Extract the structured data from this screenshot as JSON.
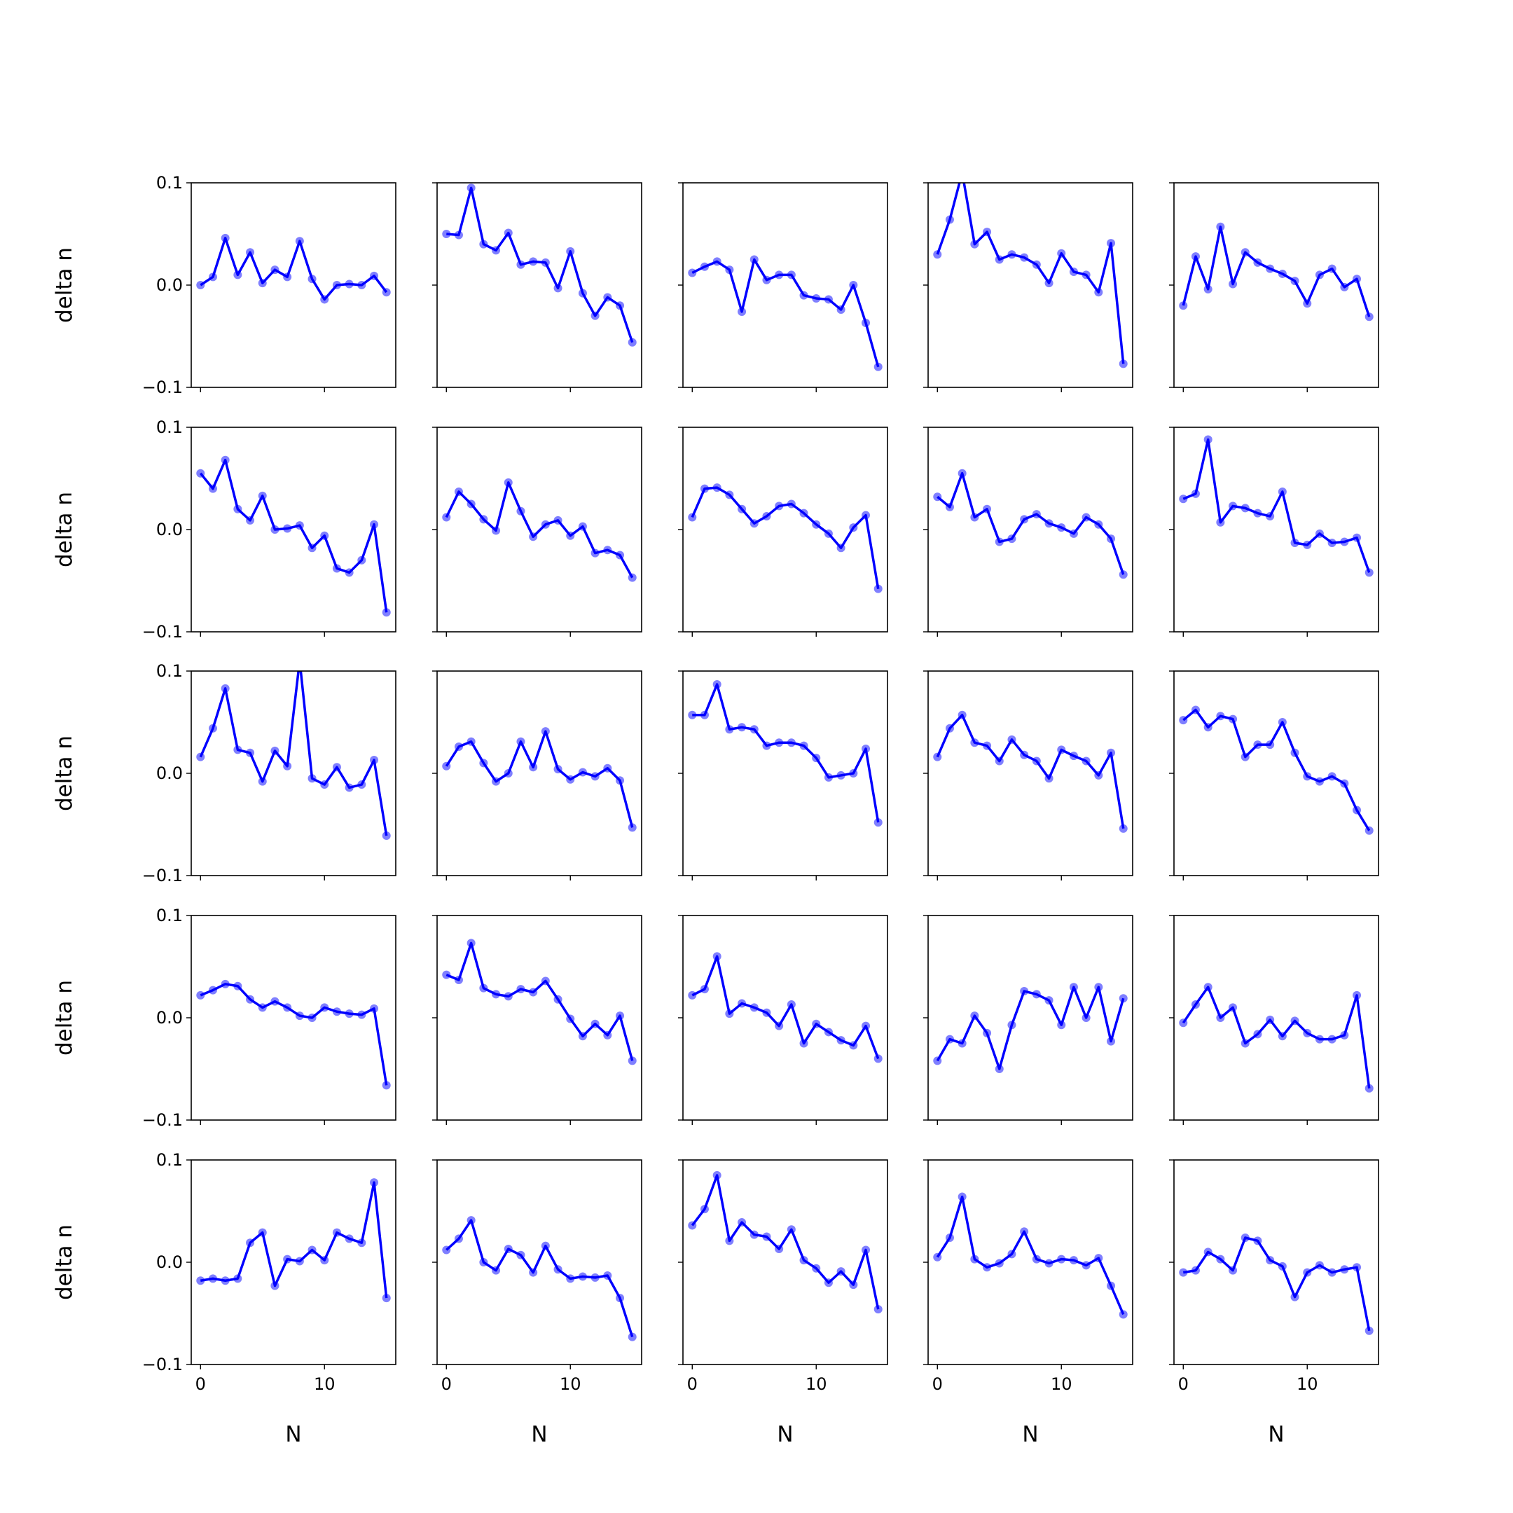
{
  "chart_data": [
    {
      "type": "line",
      "ylabel": "delta n",
      "x": [
        0,
        1,
        2,
        3,
        4,
        5,
        6,
        7,
        8,
        9,
        10,
        11,
        12,
        13,
        14,
        15
      ],
      "values": [
        0.0,
        0.008,
        0.046,
        0.01,
        0.032,
        0.002,
        0.015,
        0.008,
        0.043,
        0.006,
        -0.014,
        0.0,
        0.001,
        0.0,
        0.009,
        -0.007
      ],
      "color": "#0000ff",
      "xlim": [
        -0.75,
        15.75
      ],
      "ylim": [
        -0.1,
        0.1
      ],
      "xticks": [
        0,
        10
      ],
      "yticks": [
        {
          "value": -0.1,
          "label": "−0.1"
        },
        {
          "value": 0,
          "label": "0.0"
        },
        {
          "value": 0.1,
          "label": "0.1"
        }
      ]
    },
    {
      "type": "line",
      "x": [
        0,
        1,
        2,
        3,
        4,
        5,
        6,
        7,
        8,
        9,
        10,
        11,
        12,
        13,
        14,
        15
      ],
      "values": [
        0.05,
        0.049,
        0.095,
        0.04,
        0.034,
        0.051,
        0.02,
        0.023,
        0.022,
        -0.003,
        0.033,
        -0.008,
        -0.03,
        -0.012,
        -0.02,
        -0.056
      ],
      "color": "#0000ff",
      "xlim": [
        -0.75,
        15.75
      ],
      "ylim": [
        -0.1,
        0.1
      ],
      "xticks": [
        0,
        10
      ],
      "yticks": [
        -0.1,
        0,
        0.1
      ]
    },
    {
      "type": "line",
      "x": [
        0,
        1,
        2,
        3,
        4,
        5,
        6,
        7,
        8,
        9,
        10,
        11,
        12,
        13,
        14,
        15
      ],
      "values": [
        0.012,
        0.018,
        0.023,
        0.015,
        -0.026,
        0.025,
        0.005,
        0.01,
        0.01,
        -0.01,
        -0.013,
        -0.014,
        -0.024,
        0.0,
        -0.037,
        -0.08
      ],
      "color": "#0000ff",
      "xlim": [
        -0.75,
        15.75
      ],
      "ylim": [
        -0.1,
        0.1
      ],
      "xticks": [
        0,
        10
      ],
      "yticks": [
        -0.1,
        0,
        0.1
      ]
    },
    {
      "type": "line",
      "x": [
        0,
        1,
        2,
        3,
        4,
        5,
        6,
        7,
        8,
        9,
        10,
        11,
        12,
        13,
        14,
        15
      ],
      "values": [
        0.03,
        0.064,
        0.11,
        0.04,
        0.052,
        0.025,
        0.03,
        0.027,
        0.02,
        0.002,
        0.031,
        0.013,
        0.01,
        -0.007,
        0.041,
        -0.077
      ],
      "color": "#0000ff",
      "xlim": [
        -0.75,
        15.75
      ],
      "ylim": [
        -0.1,
        0.1
      ],
      "xticks": [
        0,
        10
      ],
      "yticks": [
        -0.1,
        0,
        0.1
      ]
    },
    {
      "type": "line",
      "x": [
        0,
        1,
        2,
        3,
        4,
        5,
        6,
        7,
        8,
        9,
        10,
        11,
        12,
        13,
        14,
        15
      ],
      "values": [
        -0.02,
        0.028,
        -0.004,
        0.057,
        0.001,
        0.032,
        0.022,
        0.016,
        0.011,
        0.004,
        -0.018,
        0.01,
        0.016,
        -0.002,
        0.006,
        -0.031
      ],
      "color": "#0000ff",
      "xlim": [
        -0.75,
        15.75
      ],
      "ylim": [
        -0.1,
        0.1
      ],
      "xticks": [
        0,
        10
      ],
      "yticks": [
        -0.1,
        0,
        0.1
      ]
    },
    {
      "type": "line",
      "ylabel": "delta n",
      "x": [
        0,
        1,
        2,
        3,
        4,
        5,
        6,
        7,
        8,
        9,
        10,
        11,
        12,
        13,
        14,
        15
      ],
      "values": [
        0.055,
        0.04,
        0.068,
        0.02,
        0.009,
        0.033,
        0.0,
        0.001,
        0.004,
        -0.018,
        -0.006,
        -0.038,
        -0.042,
        -0.03,
        0.005,
        -0.081
      ],
      "color": "#0000ff",
      "xlim": [
        -0.75,
        15.75
      ],
      "ylim": [
        -0.1,
        0.1
      ],
      "xticks": [
        0,
        10
      ],
      "yticks": [
        {
          "value": -0.1,
          "label": "−0.1"
        },
        {
          "value": 0,
          "label": "0.0"
        },
        {
          "value": 0.1,
          "label": "0.1"
        }
      ]
    },
    {
      "type": "line",
      "x": [
        0,
        1,
        2,
        3,
        4,
        5,
        6,
        7,
        8,
        9,
        10,
        11,
        12,
        13,
        14,
        15
      ],
      "values": [
        0.012,
        0.037,
        0.025,
        0.01,
        -0.001,
        0.046,
        0.018,
        -0.007,
        0.005,
        0.009,
        -0.006,
        0.003,
        -0.023,
        -0.02,
        -0.025,
        -0.047
      ],
      "color": "#0000ff",
      "xlim": [
        -0.75,
        15.75
      ],
      "ylim": [
        -0.1,
        0.1
      ],
      "xticks": [
        0,
        10
      ],
      "yticks": [
        -0.1,
        0,
        0.1
      ]
    },
    {
      "type": "line",
      "x": [
        0,
        1,
        2,
        3,
        4,
        5,
        6,
        7,
        8,
        9,
        10,
        11,
        12,
        13,
        14,
        15
      ],
      "values": [
        0.012,
        0.04,
        0.041,
        0.034,
        0.02,
        0.006,
        0.013,
        0.023,
        0.025,
        0.016,
        0.005,
        -0.004,
        -0.018,
        0.002,
        0.014,
        -0.058
      ],
      "color": "#0000ff",
      "xlim": [
        -0.75,
        15.75
      ],
      "ylim": [
        -0.1,
        0.1
      ],
      "xticks": [
        0,
        10
      ],
      "yticks": [
        -0.1,
        0,
        0.1
      ]
    },
    {
      "type": "line",
      "x": [
        0,
        1,
        2,
        3,
        4,
        5,
        6,
        7,
        8,
        9,
        10,
        11,
        12,
        13,
        14,
        15
      ],
      "values": [
        0.032,
        0.022,
        0.055,
        0.012,
        0.02,
        -0.012,
        -0.009,
        0.01,
        0.015,
        0.006,
        0.002,
        -0.004,
        0.012,
        0.005,
        -0.009,
        -0.044
      ],
      "color": "#0000ff",
      "xlim": [
        -0.75,
        15.75
      ],
      "ylim": [
        -0.1,
        0.1
      ],
      "xticks": [
        0,
        10
      ],
      "yticks": [
        -0.1,
        0,
        0.1
      ]
    },
    {
      "type": "line",
      "x": [
        0,
        1,
        2,
        3,
        4,
        5,
        6,
        7,
        8,
        9,
        10,
        11,
        12,
        13,
        14,
        15
      ],
      "values": [
        0.03,
        0.035,
        0.088,
        0.007,
        0.023,
        0.021,
        0.016,
        0.013,
        0.037,
        -0.013,
        -0.015,
        -0.004,
        -0.013,
        -0.012,
        -0.008,
        -0.042
      ],
      "color": "#0000ff",
      "xlim": [
        -0.75,
        15.75
      ],
      "ylim": [
        -0.1,
        0.1
      ],
      "xticks": [
        0,
        10
      ],
      "yticks": [
        -0.1,
        0,
        0.1
      ]
    },
    {
      "type": "line",
      "ylabel": "delta n",
      "x": [
        0,
        1,
        2,
        3,
        4,
        5,
        6,
        7,
        8,
        9,
        10,
        11,
        12,
        13,
        14,
        15
      ],
      "values": [
        0.016,
        0.044,
        0.083,
        0.023,
        0.02,
        -0.008,
        0.022,
        0.007,
        0.11,
        -0.005,
        -0.011,
        0.006,
        -0.014,
        -0.011,
        0.013,
        -0.061
      ],
      "color": "#0000ff",
      "xlim": [
        -0.75,
        15.75
      ],
      "ylim": [
        -0.1,
        0.1
      ],
      "xticks": [
        0,
        10
      ],
      "yticks": [
        {
          "value": -0.1,
          "label": "−0.1"
        },
        {
          "value": 0,
          "label": "0.0"
        },
        {
          "value": 0.1,
          "label": "0.1"
        }
      ]
    },
    {
      "type": "line",
      "x": [
        0,
        1,
        2,
        3,
        4,
        5,
        6,
        7,
        8,
        9,
        10,
        11,
        12,
        13,
        14,
        15
      ],
      "values": [
        0.007,
        0.026,
        0.031,
        0.01,
        -0.008,
        0.0,
        0.031,
        0.006,
        0.041,
        0.004,
        -0.006,
        0.001,
        -0.003,
        0.005,
        -0.007,
        -0.053
      ],
      "color": "#0000ff",
      "xlim": [
        -0.75,
        15.75
      ],
      "ylim": [
        -0.1,
        0.1
      ],
      "xticks": [
        0,
        10
      ],
      "yticks": [
        -0.1,
        0,
        0.1
      ]
    },
    {
      "type": "line",
      "x": [
        0,
        1,
        2,
        3,
        4,
        5,
        6,
        7,
        8,
        9,
        10,
        11,
        12,
        13,
        14,
        15
      ],
      "values": [
        0.057,
        0.057,
        0.087,
        0.043,
        0.045,
        0.043,
        0.027,
        0.03,
        0.03,
        0.027,
        0.015,
        -0.004,
        -0.002,
        0.0,
        0.024,
        -0.048
      ],
      "color": "#0000ff",
      "xlim": [
        -0.75,
        15.75
      ],
      "ylim": [
        -0.1,
        0.1
      ],
      "xticks": [
        0,
        10
      ],
      "yticks": [
        -0.1,
        0,
        0.1
      ]
    },
    {
      "type": "line",
      "x": [
        0,
        1,
        2,
        3,
        4,
        5,
        6,
        7,
        8,
        9,
        10,
        11,
        12,
        13,
        14,
        15
      ],
      "values": [
        0.016,
        0.044,
        0.057,
        0.03,
        0.027,
        0.012,
        0.033,
        0.018,
        0.012,
        -0.005,
        0.023,
        0.017,
        0.012,
        -0.002,
        0.02,
        -0.054
      ],
      "color": "#0000ff",
      "xlim": [
        -0.75,
        15.75
      ],
      "ylim": [
        -0.1,
        0.1
      ],
      "xticks": [
        0,
        10
      ],
      "yticks": [
        -0.1,
        0,
        0.1
      ]
    },
    {
      "type": "line",
      "x": [
        0,
        1,
        2,
        3,
        4,
        5,
        6,
        7,
        8,
        9,
        10,
        11,
        12,
        13,
        14,
        15
      ],
      "values": [
        0.052,
        0.062,
        0.045,
        0.056,
        0.053,
        0.016,
        0.028,
        0.028,
        0.05,
        0.02,
        -0.003,
        -0.008,
        -0.003,
        -0.01,
        -0.036,
        -0.056
      ],
      "color": "#0000ff",
      "xlim": [
        -0.75,
        15.75
      ],
      "ylim": [
        -0.1,
        0.1
      ],
      "xticks": [
        0,
        10
      ],
      "yticks": [
        -0.1,
        0,
        0.1
      ]
    },
    {
      "type": "line",
      "ylabel": "delta n",
      "x": [
        0,
        1,
        2,
        3,
        4,
        5,
        6,
        7,
        8,
        9,
        10,
        11,
        12,
        13,
        14,
        15
      ],
      "values": [
        0.022,
        0.027,
        0.033,
        0.031,
        0.018,
        0.01,
        0.016,
        0.01,
        0.002,
        0.0,
        0.01,
        0.006,
        0.004,
        0.003,
        0.009,
        -0.066
      ],
      "color": "#0000ff",
      "xlim": [
        -0.75,
        15.75
      ],
      "ylim": [
        -0.1,
        0.1
      ],
      "xticks": [
        0,
        10
      ],
      "yticks": [
        {
          "value": -0.1,
          "label": "−0.1"
        },
        {
          "value": 0,
          "label": "0.0"
        },
        {
          "value": 0.1,
          "label": "0.1"
        }
      ]
    },
    {
      "type": "line",
      "x": [
        0,
        1,
        2,
        3,
        4,
        5,
        6,
        7,
        8,
        9,
        10,
        11,
        12,
        13,
        14,
        15
      ],
      "values": [
        0.042,
        0.037,
        0.073,
        0.029,
        0.023,
        0.021,
        0.028,
        0.025,
        0.036,
        0.018,
        -0.001,
        -0.018,
        -0.006,
        -0.017,
        0.002,
        -0.042
      ],
      "color": "#0000ff",
      "xlim": [
        -0.75,
        15.75
      ],
      "ylim": [
        -0.1,
        0.1
      ],
      "xticks": [
        0,
        10
      ],
      "yticks": [
        -0.1,
        0,
        0.1
      ]
    },
    {
      "type": "line",
      "x": [
        0,
        1,
        2,
        3,
        4,
        5,
        6,
        7,
        8,
        9,
        10,
        11,
        12,
        13,
        14,
        15
      ],
      "values": [
        0.022,
        0.028,
        0.06,
        0.004,
        0.014,
        0.01,
        0.005,
        -0.008,
        0.013,
        -0.025,
        -0.006,
        -0.014,
        -0.022,
        -0.027,
        -0.008,
        -0.04
      ],
      "color": "#0000ff",
      "xlim": [
        -0.75,
        15.75
      ],
      "ylim": [
        -0.1,
        0.1
      ],
      "xticks": [
        0,
        10
      ],
      "yticks": [
        -0.1,
        0,
        0.1
      ]
    },
    {
      "type": "line",
      "x": [
        0,
        1,
        2,
        3,
        4,
        5,
        6,
        7,
        8,
        9,
        10,
        11,
        12,
        13,
        14,
        15
      ],
      "values": [
        -0.042,
        -0.021,
        -0.025,
        0.002,
        -0.015,
        -0.05,
        -0.007,
        0.026,
        0.023,
        0.017,
        -0.007,
        0.03,
        0.0,
        0.03,
        -0.023,
        0.019
      ],
      "color": "#0000ff",
      "xlim": [
        -0.75,
        15.75
      ],
      "ylim": [
        -0.1,
        0.1
      ],
      "xticks": [
        0,
        10
      ],
      "yticks": [
        -0.1,
        0,
        0.1
      ]
    },
    {
      "type": "line",
      "x": [
        0,
        1,
        2,
        3,
        4,
        5,
        6,
        7,
        8,
        9,
        10,
        11,
        12,
        13,
        14,
        15
      ],
      "values": [
        -0.005,
        0.013,
        0.03,
        0.0,
        0.01,
        -0.025,
        -0.016,
        -0.002,
        -0.018,
        -0.003,
        -0.015,
        -0.021,
        -0.021,
        -0.017,
        0.022,
        -0.069
      ],
      "color": "#0000ff",
      "xlim": [
        -0.75,
        15.75
      ],
      "ylim": [
        -0.1,
        0.1
      ],
      "xticks": [
        0,
        10
      ],
      "yticks": [
        -0.1,
        0,
        0.1
      ]
    },
    {
      "type": "line",
      "ylabel": "delta n",
      "xlabel": "N",
      "x": [
        0,
        1,
        2,
        3,
        4,
        5,
        6,
        7,
        8,
        9,
        10,
        11,
        12,
        13,
        14,
        15
      ],
      "values": [
        -0.018,
        -0.016,
        -0.018,
        -0.016,
        0.019,
        0.029,
        -0.023,
        0.003,
        0.001,
        0.012,
        0.002,
        0.029,
        0.023,
        0.019,
        0.078,
        -0.035
      ],
      "color": "#0000ff",
      "xlim": [
        -0.75,
        15.75
      ],
      "ylim": [
        -0.1,
        0.1
      ],
      "xticks": [
        0,
        10
      ],
      "yticks": [
        {
          "value": -0.1,
          "label": "−0.1"
        },
        {
          "value": 0,
          "label": "0.0"
        },
        {
          "value": 0.1,
          "label": "0.1"
        }
      ]
    },
    {
      "type": "line",
      "xlabel": "N",
      "x": [
        0,
        1,
        2,
        3,
        4,
        5,
        6,
        7,
        8,
        9,
        10,
        11,
        12,
        13,
        14,
        15
      ],
      "values": [
        0.012,
        0.023,
        0.041,
        0.0,
        -0.008,
        0.013,
        0.007,
        -0.01,
        0.016,
        -0.007,
        -0.016,
        -0.014,
        -0.015,
        -0.013,
        -0.035,
        -0.073
      ],
      "color": "#0000ff",
      "xlim": [
        -0.75,
        15.75
      ],
      "ylim": [
        -0.1,
        0.1
      ],
      "xticks": [
        0,
        10
      ],
      "yticks": [
        -0.1,
        0,
        0.1
      ]
    },
    {
      "type": "line",
      "xlabel": "N",
      "x": [
        0,
        1,
        2,
        3,
        4,
        5,
        6,
        7,
        8,
        9,
        10,
        11,
        12,
        13,
        14,
        15
      ],
      "values": [
        0.036,
        0.052,
        0.085,
        0.021,
        0.039,
        0.027,
        0.025,
        0.013,
        0.032,
        0.002,
        -0.006,
        -0.02,
        -0.009,
        -0.022,
        0.012,
        -0.046
      ],
      "color": "#0000ff",
      "xlim": [
        -0.75,
        15.75
      ],
      "ylim": [
        -0.1,
        0.1
      ],
      "xticks": [
        0,
        10
      ],
      "yticks": [
        -0.1,
        0,
        0.1
      ]
    },
    {
      "type": "line",
      "xlabel": "N",
      "x": [
        0,
        1,
        2,
        3,
        4,
        5,
        6,
        7,
        8,
        9,
        10,
        11,
        12,
        13,
        14,
        15
      ],
      "values": [
        0.005,
        0.024,
        0.064,
        0.003,
        -0.005,
        -0.001,
        0.008,
        0.03,
        0.003,
        -0.001,
        0.003,
        0.002,
        -0.003,
        0.004,
        -0.023,
        -0.051
      ],
      "color": "#0000ff",
      "xlim": [
        -0.75,
        15.75
      ],
      "ylim": [
        -0.1,
        0.1
      ],
      "xticks": [
        0,
        10
      ],
      "yticks": [
        -0.1,
        0,
        0.1
      ]
    },
    {
      "type": "line",
      "xlabel": "N",
      "x": [
        0,
        1,
        2,
        3,
        4,
        5,
        6,
        7,
        8,
        9,
        10,
        11,
        12,
        13,
        14,
        15
      ],
      "values": [
        -0.01,
        -0.008,
        0.01,
        0.003,
        -0.008,
        0.024,
        0.021,
        0.002,
        -0.004,
        -0.034,
        -0.01,
        -0.003,
        -0.01,
        -0.007,
        -0.005,
        -0.067
      ],
      "color": "#0000ff",
      "xlim": [
        -0.75,
        15.75
      ],
      "ylim": [
        -0.1,
        0.1
      ],
      "xticks": [
        0,
        10
      ],
      "yticks": [
        -0.1,
        0,
        0.1
      ]
    }
  ]
}
